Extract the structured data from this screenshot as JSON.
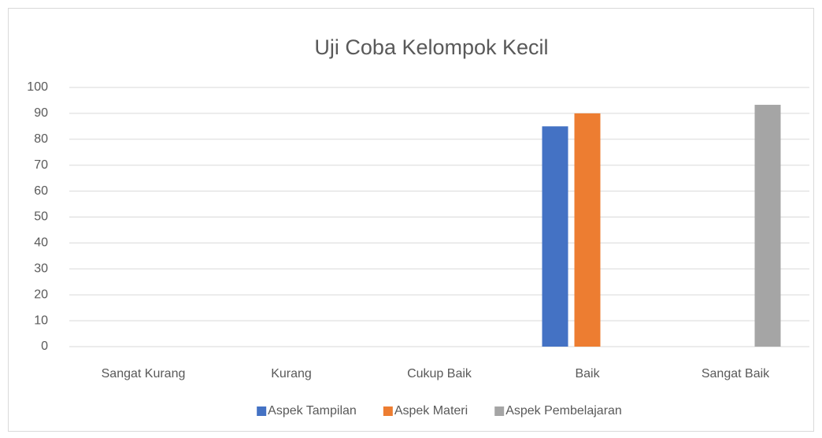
{
  "chart_data": {
    "type": "bar",
    "title": "Uji Coba Kelompok Kecil",
    "categories": [
      "Sangat Kurang",
      "Kurang",
      "Cukup Baik",
      "Baik",
      "Sangat Baik"
    ],
    "series": [
      {
        "name": "Aspek Tampilan",
        "color": "#4472c4",
        "values": [
          null,
          null,
          null,
          85,
          null
        ]
      },
      {
        "name": "Aspek Materi",
        "color": "#ed7d31",
        "values": [
          null,
          null,
          null,
          90,
          null
        ]
      },
      {
        "name": "Aspek Pembelajaran",
        "color": "#a5a5a5",
        "values": [
          null,
          null,
          null,
          null,
          93.3
        ]
      }
    ],
    "ylim": [
      0,
      100
    ],
    "yticks": [
      0,
      10,
      20,
      30,
      40,
      50,
      60,
      70,
      80,
      90,
      100
    ],
    "grid": true,
    "legend": "bottom"
  }
}
